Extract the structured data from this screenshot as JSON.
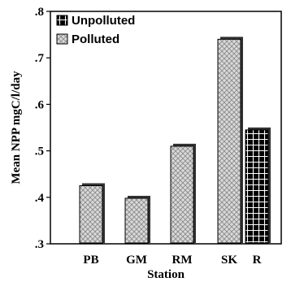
{
  "chart_data": {
    "type": "bar",
    "categories": [
      "PB",
      "GM",
      "RM",
      "SK",
      "R"
    ],
    "series": [
      {
        "name": "Unpolluted",
        "values": [
          null,
          null,
          null,
          null,
          0.545
        ],
        "color": "#000000",
        "pattern": "grid"
      },
      {
        "name": "Polluted",
        "values": [
          0.425,
          0.398,
          0.51,
          0.74,
          null
        ],
        "color": "#cccccc",
        "pattern": "crosshatch"
      }
    ],
    "xlabel": "Station",
    "ylabel": "Mean NPP mgC/l/day",
    "ylim": [
      0.3,
      0.8
    ],
    "yticks": [
      0.3,
      0.4,
      0.5,
      0.6,
      0.7,
      0.8
    ],
    "ytick_labels": [
      ".3",
      ".4",
      ".5",
      ".6",
      ".7",
      ".8"
    ],
    "grid": false,
    "legend_position": "top-left"
  }
}
